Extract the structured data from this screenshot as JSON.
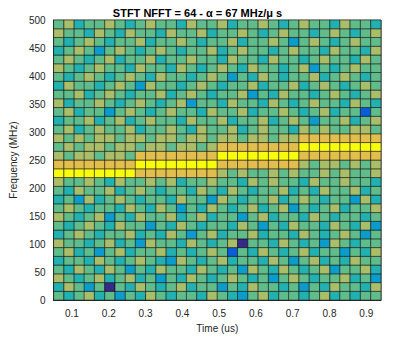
{
  "chart_data": {
    "type": "heatmap",
    "title": "STFT NFFT = 64 - α = 67 MHz/μ s",
    "x_label": "Time (us)",
    "y_label": "Frequency (MHz)",
    "xlim": [
      0.05,
      0.94
    ],
    "xticks": [
      0.1,
      0.2,
      0.3,
      0.4,
      0.5,
      0.6,
      0.7,
      0.8,
      0.9
    ],
    "ylim": [
      0,
      500
    ],
    "yticks": [
      0,
      50,
      100,
      150,
      200,
      250,
      300,
      350,
      400,
      450,
      500
    ],
    "grid": false,
    "x": [
      0.064,
      0.092,
      0.12,
      0.147,
      0.175,
      0.203,
      0.231,
      0.259,
      0.286,
      0.314,
      0.342,
      0.37,
      0.398,
      0.425,
      0.453,
      0.481,
      0.509,
      0.537,
      0.564,
      0.592,
      0.62,
      0.648,
      0.676,
      0.703,
      0.731,
      0.759,
      0.787,
      0.815,
      0.842,
      0.87,
      0.898,
      0.926
    ],
    "y": [
      7.8,
      23.4,
      39.1,
      54.7,
      70.3,
      85.9,
      101.6,
      117.2,
      132.8,
      148.4,
      164.1,
      179.7,
      195.3,
      210.9,
      226.6,
      242.2,
      257.8,
      273.4,
      289.1,
      304.7,
      320.3,
      335.9,
      351.6,
      367.2,
      382.8,
      398.4,
      414.1,
      429.7,
      445.3,
      460.9,
      476.6,
      492.2
    ],
    "cells": [
      [
        6,
        5,
        6,
        7,
        5,
        6,
        4,
        6,
        5,
        7,
        6,
        5,
        6,
        6,
        5,
        7,
        6,
        5,
        4,
        6,
        7,
        5,
        6,
        6,
        5,
        6,
        7,
        5,
        6,
        5,
        6,
        6
      ],
      [
        5,
        7,
        6,
        4,
        6,
        1,
        6,
        5,
        7,
        6,
        5,
        6,
        7,
        5,
        6,
        6,
        4,
        6,
        5,
        7,
        6,
        6,
        5,
        6,
        4,
        6,
        5,
        7,
        6,
        6,
        5,
        7
      ],
      [
        7,
        6,
        5,
        6,
        7,
        5,
        6,
        7,
        5,
        6,
        4,
        6,
        5,
        7,
        6,
        5,
        6,
        7,
        6,
        5,
        6,
        4,
        6,
        7,
        6,
        5,
        6,
        6,
        7,
        5,
        6,
        4
      ],
      [
        6,
        5,
        7,
        6,
        5,
        7,
        6,
        4,
        6,
        5,
        7,
        6,
        6,
        5,
        7,
        6,
        5,
        6,
        4,
        7,
        6,
        5,
        7,
        6,
        5,
        6,
        7,
        4,
        6,
        6,
        7,
        5
      ],
      [
        5,
        6,
        6,
        5,
        7,
        6,
        5,
        6,
        7,
        6,
        5,
        4,
        7,
        6,
        5,
        6,
        7,
        5,
        6,
        6,
        5,
        7,
        6,
        4,
        6,
        7,
        5,
        6,
        5,
        7,
        6,
        6
      ],
      [
        6,
        7,
        5,
        6,
        4,
        6,
        7,
        5,
        6,
        6,
        7,
        5,
        6,
        5,
        6,
        7,
        6,
        2,
        6,
        5,
        7,
        6,
        5,
        6,
        7,
        5,
        6,
        6,
        4,
        6,
        5,
        7
      ],
      [
        7,
        6,
        6,
        5,
        6,
        7,
        5,
        6,
        4,
        7,
        6,
        6,
        5,
        7,
        6,
        5,
        6,
        7,
        1,
        6,
        6,
        5,
        7,
        6,
        5,
        6,
        4,
        7,
        6,
        5,
        6,
        6
      ],
      [
        5,
        6,
        7,
        6,
        5,
        6,
        6,
        7,
        5,
        6,
        5,
        7,
        6,
        4,
        6,
        7,
        5,
        6,
        6,
        7,
        5,
        6,
        6,
        5,
        7,
        6,
        5,
        6,
        7,
        6,
        4,
        6
      ],
      [
        6,
        5,
        6,
        7,
        6,
        5,
        7,
        6,
        6,
        4,
        6,
        5,
        7,
        6,
        5,
        6,
        6,
        5,
        7,
        6,
        4,
        6,
        5,
        7,
        6,
        6,
        5,
        7,
        6,
        5,
        7,
        4
      ],
      [
        7,
        6,
        5,
        6,
        7,
        4,
        6,
        5,
        7,
        6,
        6,
        7,
        5,
        6,
        7,
        5,
        6,
        6,
        4,
        6,
        7,
        5,
        6,
        6,
        5,
        7,
        6,
        5,
        6,
        6,
        5,
        6
      ],
      [
        6,
        7,
        6,
        5,
        6,
        6,
        5,
        7,
        6,
        5,
        7,
        6,
        4,
        6,
        5,
        7,
        6,
        5,
        6,
        7,
        5,
        6,
        7,
        4,
        6,
        5,
        6,
        7,
        5,
        6,
        6,
        7
      ],
      [
        5,
        6,
        4,
        7,
        5,
        6,
        7,
        6,
        5,
        6,
        6,
        5,
        7,
        6,
        6,
        4,
        7,
        6,
        5,
        6,
        6,
        7,
        5,
        6,
        7,
        6,
        5,
        6,
        6,
        4,
        7,
        5
      ],
      [
        6,
        5,
        7,
        6,
        6,
        7,
        5,
        6,
        7,
        6,
        5,
        6,
        6,
        5,
        7,
        6,
        5,
        7,
        6,
        5,
        6,
        6,
        7,
        5,
        6,
        5,
        7,
        6,
        6,
        7,
        5,
        6
      ],
      [
        7,
        6,
        6,
        7,
        6,
        5,
        7,
        6,
        6,
        7,
        6,
        7,
        5,
        6,
        6,
        7,
        6,
        6,
        5,
        7,
        6,
        7,
        6,
        6,
        5,
        7,
        6,
        6,
        7,
        6,
        6,
        5
      ],
      [
        10,
        10,
        10,
        10,
        10,
        10,
        10,
        10,
        8,
        8,
        8,
        8,
        8,
        8,
        8,
        8,
        7,
        6,
        7,
        6,
        6,
        7,
        6,
        7,
        6,
        6,
        7,
        6,
        7,
        6,
        6,
        7
      ],
      [
        8,
        8,
        8,
        8,
        8,
        8,
        8,
        8,
        10,
        10,
        10,
        10,
        10,
        10,
        10,
        10,
        8,
        8,
        8,
        8,
        8,
        8,
        8,
        8,
        7,
        6,
        7,
        7,
        6,
        7,
        6,
        7
      ],
      [
        7,
        6,
        7,
        7,
        6,
        7,
        7,
        6,
        8,
        8,
        8,
        8,
        8,
        8,
        8,
        8,
        10,
        10,
        10,
        10,
        10,
        10,
        10,
        10,
        8,
        8,
        8,
        8,
        8,
        8,
        8,
        8
      ],
      [
        6,
        7,
        6,
        7,
        7,
        6,
        7,
        7,
        6,
        7,
        7,
        6,
        7,
        7,
        6,
        7,
        8,
        8,
        8,
        8,
        8,
        8,
        8,
        8,
        10,
        10,
        10,
        10,
        10,
        10,
        10,
        10
      ],
      [
        7,
        6,
        7,
        6,
        7,
        7,
        6,
        7,
        7,
        6,
        7,
        7,
        6,
        7,
        7,
        6,
        7,
        7,
        6,
        7,
        7,
        6,
        7,
        7,
        8,
        8,
        8,
        8,
        8,
        8,
        8,
        8
      ],
      [
        6,
        7,
        5,
        6,
        7,
        6,
        6,
        7,
        5,
        6,
        6,
        7,
        6,
        5,
        7,
        6,
        6,
        7,
        5,
        6,
        7,
        6,
        6,
        5,
        7,
        6,
        7,
        6,
        6,
        7,
        7,
        6
      ],
      [
        5,
        6,
        6,
        7,
        5,
        6,
        7,
        5,
        6,
        7,
        6,
        6,
        5,
        7,
        6,
        6,
        7,
        5,
        6,
        6,
        7,
        5,
        6,
        7,
        6,
        4,
        6,
        6,
        7,
        5,
        6,
        7
      ],
      [
        6,
        7,
        5,
        6,
        6,
        4,
        6,
        7,
        6,
        5,
        6,
        7,
        6,
        6,
        5,
        7,
        6,
        6,
        7,
        5,
        6,
        6,
        7,
        6,
        5,
        6,
        7,
        5,
        6,
        6,
        2,
        6
      ],
      [
        7,
        5,
        6,
        6,
        7,
        6,
        5,
        6,
        7,
        6,
        5,
        6,
        7,
        4,
        6,
        6,
        5,
        7,
        6,
        6,
        5,
        7,
        6,
        5,
        6,
        7,
        6,
        6,
        5,
        7,
        6,
        5
      ],
      [
        6,
        6,
        7,
        5,
        6,
        7,
        6,
        5,
        6,
        6,
        7,
        5,
        6,
        7,
        6,
        5,
        6,
        6,
        7,
        4,
        6,
        5,
        7,
        6,
        6,
        5,
        6,
        7,
        6,
        5,
        6,
        7
      ],
      [
        5,
        7,
        6,
        6,
        5,
        6,
        7,
        6,
        4,
        7,
        6,
        6,
        5,
        6,
        7,
        6,
        5,
        6,
        6,
        7,
        5,
        6,
        6,
        7,
        5,
        6,
        7,
        6,
        5,
        6,
        7,
        6
      ],
      [
        6,
        5,
        6,
        7,
        6,
        5,
        6,
        7,
        6,
        5,
        7,
        6,
        6,
        5,
        6,
        7,
        6,
        4,
        6,
        5,
        7,
        6,
        5,
        6,
        6,
        7,
        5,
        6,
        7,
        6,
        5,
        6
      ],
      [
        7,
        6,
        5,
        6,
        7,
        6,
        6,
        5,
        7,
        6,
        6,
        5,
        7,
        6,
        5,
        6,
        7,
        6,
        5,
        7,
        6,
        6,
        5,
        6,
        7,
        4,
        6,
        5,
        6,
        7,
        6,
        6
      ],
      [
        6,
        7,
        6,
        5,
        6,
        7,
        5,
        6,
        6,
        7,
        5,
        6,
        6,
        7,
        6,
        6,
        5,
        7,
        6,
        6,
        5,
        7,
        6,
        6,
        5,
        6,
        7,
        6,
        6,
        5,
        7,
        6
      ],
      [
        5,
        6,
        7,
        6,
        4,
        6,
        7,
        6,
        5,
        6,
        7,
        6,
        5,
        6,
        6,
        7,
        5,
        6,
        7,
        6,
        6,
        5,
        6,
        7,
        6,
        6,
        5,
        7,
        6,
        6,
        5,
        7
      ],
      [
        6,
        5,
        6,
        7,
        6,
        5,
        6,
        6,
        7,
        5,
        6,
        6,
        7,
        6,
        5,
        6,
        6,
        7,
        5,
        6,
        6,
        7,
        6,
        4,
        6,
        7,
        6,
        5,
        6,
        7,
        6,
        6
      ],
      [
        7,
        6,
        6,
        5,
        7,
        6,
        5,
        7,
        6,
        6,
        5,
        7,
        6,
        6,
        7,
        5,
        6,
        6,
        7,
        6,
        5,
        6,
        7,
        6,
        6,
        5,
        6,
        7,
        6,
        5,
        6,
        7
      ],
      [
        6,
        7,
        5,
        6,
        6,
        7,
        6,
        5,
        6,
        7,
        6,
        6,
        5,
        7,
        6,
        6,
        7,
        5,
        6,
        6,
        7,
        6,
        5,
        6,
        7,
        6,
        6,
        5,
        7,
        6,
        6,
        5
      ]
    ]
  }
}
